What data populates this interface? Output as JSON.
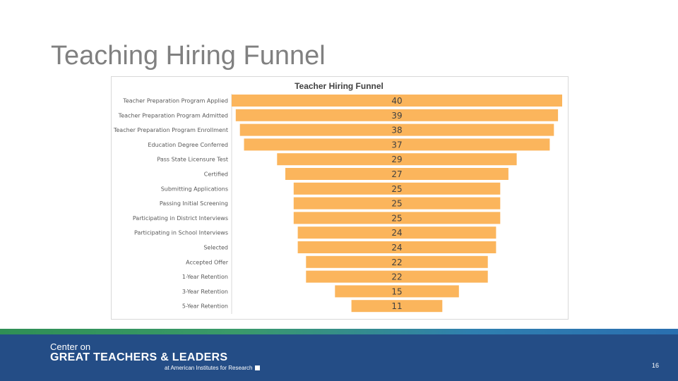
{
  "slide": {
    "title": "Teaching Hiring Funnel",
    "page_number": "16"
  },
  "footer": {
    "line1": "Center on",
    "line2": "GREAT TEACHERS & LEADERS",
    "line3": "at American Institutes for Research"
  },
  "colors": {
    "bar": "#fbb55c",
    "footer_bg": "#244d86",
    "title_text": "#808080"
  },
  "chart_data": {
    "type": "bar",
    "orientation": "horizontal-funnel",
    "title": "Teacher Hiring Funnel",
    "categories": [
      "Teacher Preparation Program Applied",
      "Teacher Preparation Program Admitted",
      "Teacher Preparation Program Enrollment",
      "Education Degree Conferred",
      "Pass State Licensure Test",
      "Certified",
      "Submitting Applications",
      "Passing Initial Screening",
      "Participating in District Interviews",
      "Participating in School Interviews",
      "Selected",
      "Accepted Offer",
      "1-Year Retention",
      "3-Year Retention",
      "5-Year Retention"
    ],
    "values": [
      40,
      39,
      38,
      37,
      29,
      27,
      25,
      25,
      25,
      24,
      24,
      22,
      22,
      15,
      11
    ],
    "xlim": [
      0,
      40
    ],
    "grid": false,
    "legend": "none"
  }
}
